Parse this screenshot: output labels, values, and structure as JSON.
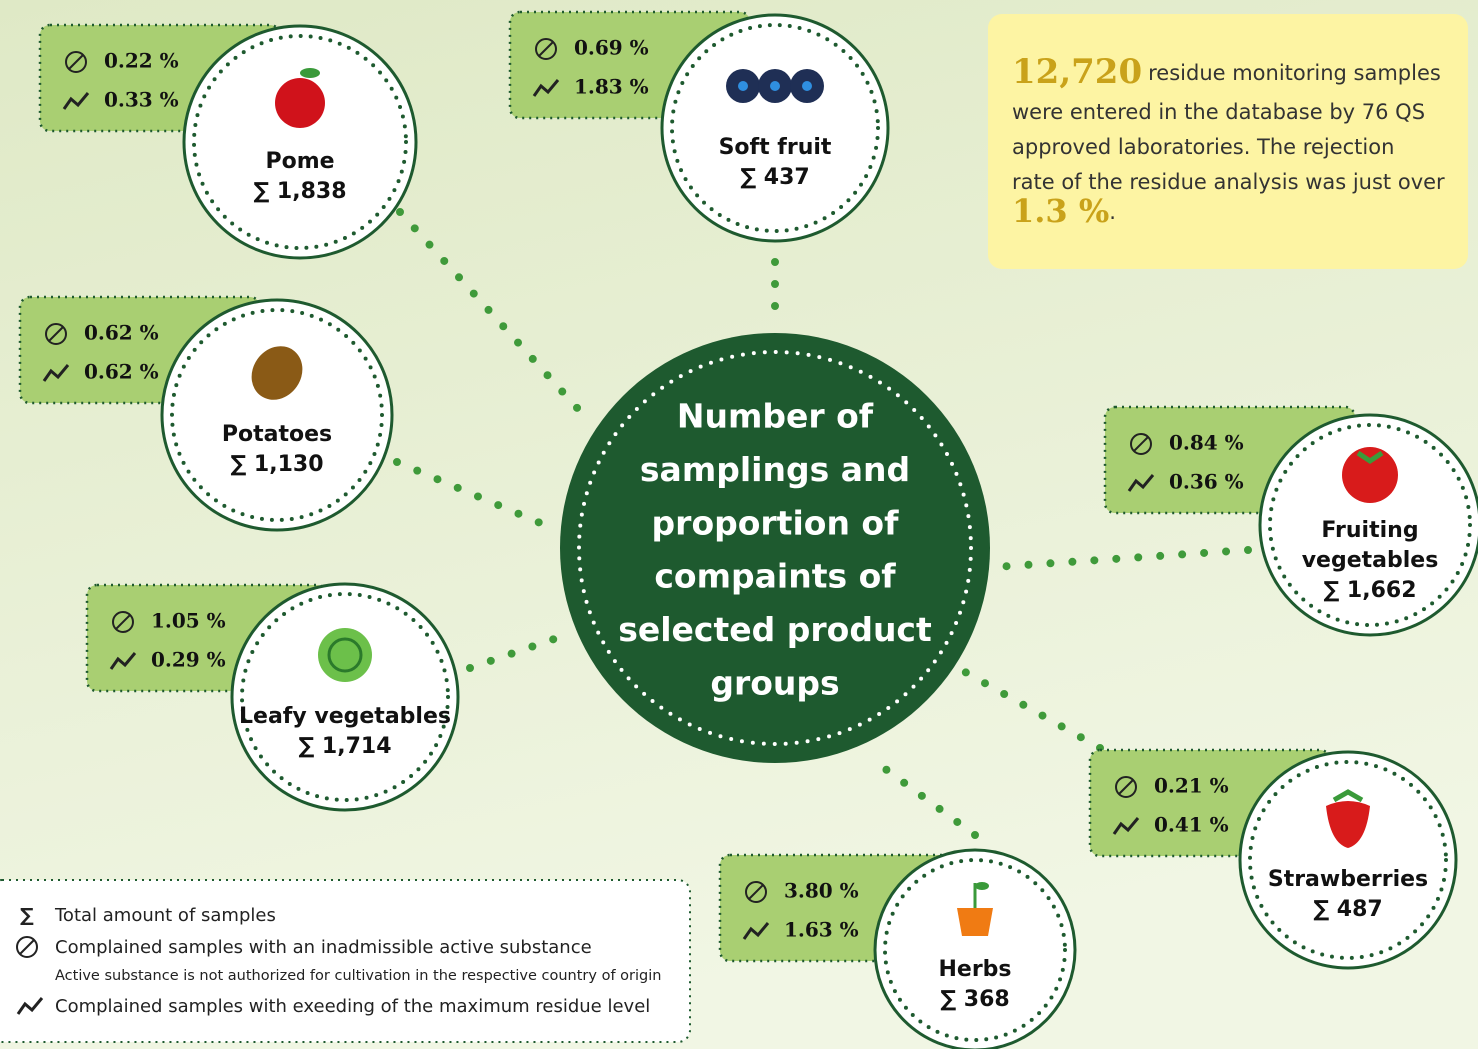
{
  "center": {
    "title_lines": [
      "Number of",
      "samplings and",
      "proportion of",
      "compaints of",
      "selected product",
      "groups"
    ]
  },
  "info": {
    "count": "12,720",
    "lines": [
      "residue monitoring samples",
      "were entered in the database by 76 QS",
      "approved laboratories. The rejection",
      "rate of the residue analysis was just over"
    ],
    "rate": "1.3 %",
    "end": "."
  },
  "groups": [
    {
      "name_lines": [
        "Pome"
      ],
      "total": "∑ 1,838",
      "inadmissible": "0.22 %",
      "mrl": "0.33 %"
    },
    {
      "name_lines": [
        "Soft fruit"
      ],
      "total": "∑ 437",
      "inadmissible": "0.69 %",
      "mrl": "1.83 %"
    },
    {
      "name_lines": [
        "Potatoes"
      ],
      "total": "∑ 1,130",
      "inadmissible": "0.62 %",
      "mrl": "0.62 %"
    },
    {
      "name_lines": [
        "Fruiting",
        "vegetables"
      ],
      "total": "∑ 1,662",
      "inadmissible": "0.84 %",
      "mrl": "0.36 %"
    },
    {
      "name_lines": [
        "Leafy vegetables"
      ],
      "total": "∑ 1,714",
      "inadmissible": "1.05 %",
      "mrl": "0.29 %"
    },
    {
      "name_lines": [
        "Strawberries"
      ],
      "total": "∑ 487",
      "inadmissible": "0.21 %",
      "mrl": "0.41 %"
    },
    {
      "name_lines": [
        "Herbs"
      ],
      "total": "∑ 368",
      "inadmissible": "3.80 %",
      "mrl": "1.63 %"
    }
  ],
  "legend": {
    "symbol": "∑",
    "total": "Total amount of samples",
    "inadmissible": "Complained samples with an inadmissible active substance",
    "note": "Active substance is not authorized for cultivation in the respective country of origin",
    "mrl": "Complained samples with exeeding of the maximum residue level"
  }
}
